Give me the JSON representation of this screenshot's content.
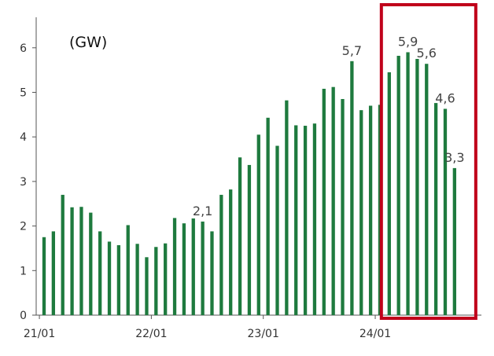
{
  "chart_data": {
    "type": "bar",
    "unit_label": "(GW)",
    "ylim": [
      0,
      6.5
    ],
    "y_ticks": [
      "0",
      "1",
      "2",
      "3",
      "4",
      "5",
      "6"
    ],
    "x_tick_labels": [
      "21/01",
      "22/01",
      "23/01",
      "24/01"
    ],
    "bar_color": "#1e7a3e",
    "highlight_color": "#c0001a",
    "grid": false,
    "series": [
      {
        "values": [
          1.75,
          1.88,
          2.7,
          2.42,
          2.43,
          2.3,
          1.88,
          1.65,
          1.57,
          2.02,
          1.6,
          1.3,
          1.53,
          1.61,
          2.18,
          2.06,
          2.17,
          2.1,
          1.88,
          2.7,
          2.82,
          3.54,
          3.37,
          4.05,
          4.43,
          3.8,
          4.82,
          4.26,
          4.25,
          4.3,
          5.08,
          5.12,
          4.85,
          5.7,
          4.6,
          4.7,
          4.72,
          5.45,
          5.82,
          5.9,
          5.75,
          5.64,
          4.76,
          4.63,
          3.3
        ]
      }
    ],
    "data_labels": [
      {
        "index": 17,
        "text": "2,1"
      },
      {
        "index": 33,
        "text": "5,7"
      },
      {
        "index": 39,
        "text": "5,9"
      },
      {
        "index": 41,
        "text": "5,6"
      },
      {
        "index": 43,
        "text": "4,6"
      },
      {
        "index": 44,
        "text": "3,3"
      }
    ],
    "highlight_range": [
      37,
      44
    ]
  }
}
